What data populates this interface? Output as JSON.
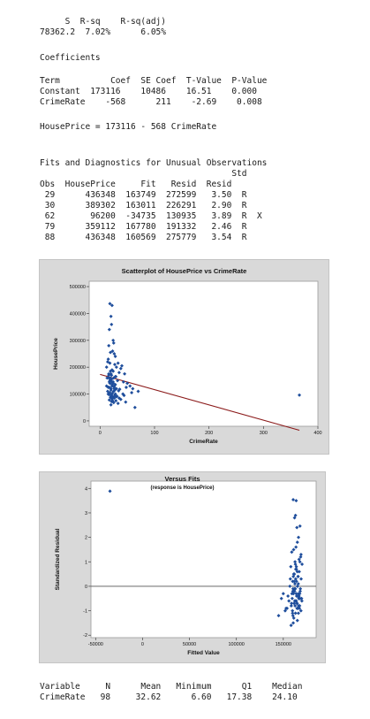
{
  "summary": {
    "header": "     S  R-sq    R-sq(adj)",
    "row": "78362.2  7.02%      6.05%"
  },
  "coefficients": {
    "title": "Coefficients",
    "header": "Term          Coef  SE Coef  T-Value  P-Value",
    "rows": [
      "Constant  173116    10486    16.51    0.000",
      "CrimeRate    -568      211    -2.69    0.008"
    ]
  },
  "equation": "HousePrice = 173116 - 568 CrimeRate",
  "diagnostics": {
    "title": "Fits and Diagnostics for Unusual Observations",
    "header1": "                                      Std",
    "header2": "Obs  HousePrice     Fit   Resid  Resid",
    "rows": [
      " 29      436348  163749  272599   3.50  R",
      " 30      389302  163011  226291   2.90  R",
      " 62       96200  -34735  130935   3.89  R  X",
      " 79      359112  167780  191332   2.46  R",
      " 88      436348  160569  275779   3.54  R"
    ]
  },
  "descriptive": {
    "header": "Variable     N      Mean   Minimum      Q1    Median",
    "row": "CrimeRate   98     32.62      6.60   17.38    24.10"
  },
  "chart_data": [
    {
      "type": "scatter",
      "title": "Scatterplot of HousePrice vs CrimeRate",
      "xlabel": "CrimeRate",
      "ylabel": "HousePrice",
      "xlim": [
        -20,
        400
      ],
      "ylim": [
        -20000,
        520000
      ],
      "xticks": [
        0,
        100,
        200,
        300,
        400
      ],
      "yticks": [
        0,
        100000,
        200000,
        300000,
        400000,
        500000
      ],
      "point_color": "#1f4e9c",
      "fit_line": {
        "x": [
          0,
          366
        ],
        "y": [
          173116,
          -34735
        ],
        "color": "#8b1a1a"
      },
      "x": [
        18,
        20,
        22,
        24,
        17,
        21,
        16,
        19,
        15,
        25,
        14,
        28,
        23,
        27,
        30,
        26,
        18,
        22,
        12,
        33,
        20,
        35,
        24,
        16,
        38,
        29,
        13,
        40,
        21,
        45,
        19,
        43,
        25,
        50,
        17,
        55,
        32,
        22,
        48,
        28,
        60,
        15,
        36,
        20,
        26,
        70,
        24,
        30,
        18,
        34,
        42,
        22,
        16,
        27,
        58,
        20,
        23,
        31,
        19,
        26,
        14,
        38,
        22,
        17,
        29,
        47,
        21,
        25,
        12,
        18,
        33,
        20,
        64,
        24,
        28,
        366,
        19,
        16,
        22,
        27,
        15,
        30,
        23,
        20,
        26,
        18,
        44,
        21,
        25,
        17,
        35,
        24,
        19,
        28,
        20,
        22,
        16,
        26
      ],
      "y": [
        436348,
        389302,
        430000,
        300000,
        340000,
        359112,
        280000,
        255000,
        230000,
        290000,
        220000,
        240000,
        260000,
        210000,
        200000,
        250000,
        215000,
        190000,
        200000,
        215000,
        175000,
        180000,
        185000,
        170000,
        195000,
        165000,
        160000,
        205000,
        155000,
        175000,
        150000,
        145000,
        160000,
        140000,
        145000,
        130000,
        150000,
        130000,
        125000,
        135000,
        120000,
        125000,
        118000,
        115000,
        125000,
        110000,
        108000,
        120000,
        105000,
        112000,
        100000,
        100000,
        98000,
        95000,
        105000,
        95000,
        90000,
        92000,
        88000,
        85000,
        110000,
        80000,
        82000,
        78000,
        75000,
        70000,
        72000,
        68000,
        130000,
        140000,
        65000,
        60000,
        50000,
        145000,
        165000,
        96200,
        185000,
        160000,
        135000,
        115000,
        100000,
        90000,
        75000,
        120000,
        130000,
        150000,
        95000,
        170000,
        110000,
        125000,
        85000,
        140000,
        160000,
        100000,
        155000,
        145000,
        175000,
        120000
      ]
    },
    {
      "type": "scatter",
      "title": "Versus Fits",
      "subtitle": "(response is HousePrice)",
      "xlabel": "Fitted Value",
      "ylabel": "Standardized Residual",
      "xlim": [
        -55000,
        185000
      ],
      "ylim": [
        -2.1,
        4.3
      ],
      "xticks": [
        -50000,
        0,
        50000,
        100000,
        150000
      ],
      "yticks": [
        -2,
        -1,
        0,
        1,
        2,
        3,
        4
      ],
      "point_color": "#1f4e9c",
      "zero_line_color": "#555555",
      "x": [
        -34735,
        163749,
        163011,
        160569,
        167780,
        162000,
        164500,
        165000,
        166200,
        161000,
        163500,
        168500,
        159000,
        162500,
        166800,
        170000,
        158000,
        164000,
        167000,
        161800,
        165800,
        163200,
        160000,
        169000,
        166000,
        157000,
        162800,
        165200,
        168000,
        160800,
        164200,
        167500,
        159500,
        163800,
        161500,
        166500,
        158500,
        165500,
        162200,
        168800,
        155000,
        163000,
        166300,
        160300,
        164800,
        169500,
        150000,
        161200,
        167200,
        163400,
        165000,
        162000,
        159800,
        166800,
        153000,
        164400,
        160600,
        168200,
        162600,
        156000,
        165700,
        163700,
        148000,
        161700,
        166100,
        164900,
        158800,
        167700,
        160200,
        163900,
        152000,
        165300,
        162400,
        169800,
        157500,
        164600,
        161100,
        166700,
        159200,
        163300,
        145000,
        160400,
        167400,
        162900,
        165600,
        158300,
        164100,
        161400,
        168900,
        163100,
        154000,
        166200,
        160700,
        164700,
        162100,
        167900,
        159900,
        165100
      ],
      "y": [
        3.89,
        3.5,
        2.9,
        3.54,
        2.46,
        2.8,
        2.4,
        1.8,
        2.0,
        1.5,
        1.6,
        1.2,
        1.4,
        1.0,
        1.1,
        0.9,
        0.8,
        0.7,
        0.6,
        0.5,
        0.4,
        0.3,
        0.2,
        0.3,
        0.1,
        0.0,
        -0.1,
        0.0,
        -0.2,
        -0.3,
        -0.4,
        -0.3,
        -0.5,
        -0.6,
        -0.7,
        -0.5,
        -0.8,
        -0.9,
        -0.6,
        -1.0,
        -0.4,
        -1.1,
        -0.8,
        -1.2,
        -0.7,
        -0.5,
        -0.3,
        -1.3,
        -0.9,
        -0.6,
        -1.4,
        -0.2,
        -1.0,
        -0.4,
        -0.9,
        -0.7,
        -1.5,
        -0.1,
        -0.8,
        -0.6,
        0.4,
        -0.3,
        -0.5,
        0.2,
        -1.1,
        0.6,
        -0.7,
        1.0,
        -0.2,
        0.8,
        -1.0,
        -0.4,
        0.1,
        -0.6,
        0.3,
        -0.9,
        0.5,
        -0.5,
        -0.3,
        0.7,
        -1.2,
        -0.1,
        -0.8,
        0.9,
        -0.4,
        -1.6,
        0.2,
        -0.2,
        1.3,
        -0.6,
        -0.9,
        -0.3,
        0.4,
        -0.7,
        -0.1,
        -0.5,
        -1.1,
        0.0
      ]
    }
  ]
}
